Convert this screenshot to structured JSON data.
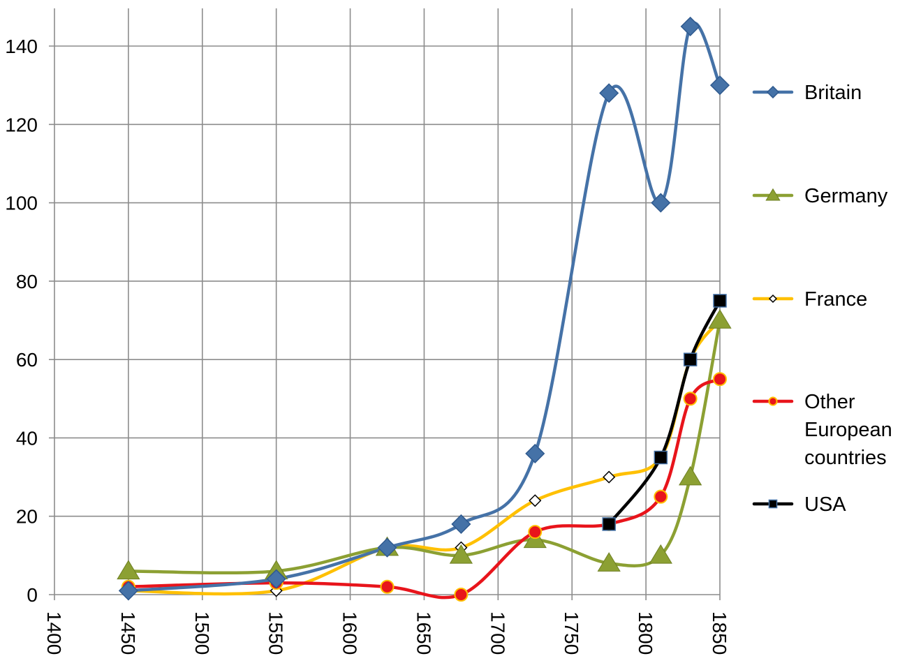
{
  "chart_data": {
    "type": "line",
    "title": "",
    "xlabel": "",
    "ylabel": "",
    "xlim": [
      1400,
      1850
    ],
    "ylim": [
      0,
      150
    ],
    "x_ticks": [
      1400,
      1450,
      1500,
      1550,
      1600,
      1650,
      1700,
      1750,
      1800,
      1850
    ],
    "x_tick_labels": [
      "1400",
      "1450",
      "1500",
      "1550",
      "1600",
      "1650",
      "1700",
      "1750",
      "1800",
      "1850"
    ],
    "y_ticks": [
      0,
      20,
      40,
      60,
      80,
      100,
      120,
      140
    ],
    "y_tick_labels": [
      "0",
      "20",
      "40",
      "60",
      "80",
      "100",
      "120",
      "140"
    ],
    "x_tick_rotation": 90,
    "grid": true,
    "smooth": true,
    "legend_position": "right",
    "series": [
      {
        "name": "Britain",
        "color": "#4572a7",
        "marker": "diamond-filled",
        "x": [
          1450,
          1550,
          1625,
          1675,
          1725,
          1775,
          1810,
          1830,
          1850
        ],
        "y": [
          1,
          4,
          12,
          18,
          36,
          128,
          100,
          145,
          130
        ]
      },
      {
        "name": "Germany",
        "color": "#8ca033",
        "marker": "triangle",
        "x": [
          1450,
          1550,
          1625,
          1675,
          1725,
          1775,
          1810,
          1830,
          1850
        ],
        "y": [
          6,
          6,
          12,
          10,
          14,
          8,
          10,
          30,
          70
        ]
      },
      {
        "name": "France",
        "color": "#ffc000",
        "marker": "diamond-open",
        "x": [
          1450,
          1550,
          1625,
          1675,
          1725,
          1775,
          1810,
          1830,
          1850
        ],
        "y": [
          1,
          1,
          12,
          12,
          24,
          30,
          35,
          60,
          70
        ]
      },
      {
        "name": "Other European countries",
        "label_lines": [
          "Other",
          "European",
          "countries"
        ],
        "color": "#e8141b",
        "marker": "circle",
        "x": [
          1450,
          1550,
          1625,
          1675,
          1725,
          1775,
          1810,
          1830,
          1850
        ],
        "y": [
          2,
          3,
          2,
          0,
          16,
          18,
          25,
          50,
          55
        ]
      },
      {
        "name": "USA",
        "color": "#000000",
        "marker": "square",
        "x": [
          1775,
          1810,
          1830,
          1850
        ],
        "y": [
          18,
          35,
          60,
          75
        ]
      }
    ]
  }
}
